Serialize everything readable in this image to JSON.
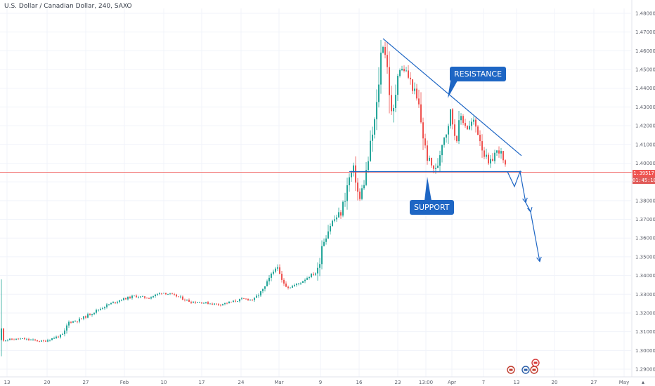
{
  "header": {
    "title": "U.S. Dollar / Canadian Dollar, 240, SAXO"
  },
  "annotations": {
    "resistance": "RESISTANCE",
    "support": "SUPPORT"
  },
  "price_tags": {
    "current": "1.39517",
    "countdown": "01:45:18"
  },
  "icons": [
    "event-flag-icon",
    "event-flag-icon",
    "event-flag-icon",
    "event-flag-icon"
  ],
  "colors": {
    "up": "#26a69a",
    "down": "#ef5350",
    "trendline": "#1e66c4",
    "price_line": "#ef5350",
    "grid": "#f0f3fa",
    "axis_text": "#5d606b"
  },
  "chart_data": {
    "type": "candlestick",
    "title": "U.S. Dollar / Canadian Dollar, 240, SAXO",
    "interval": "240",
    "ylim": [
      1.285,
      1.485
    ],
    "y_ticks": [
      "1.29000",
      "1.30000",
      "1.31000",
      "1.32000",
      "1.33000",
      "1.34000",
      "1.35000",
      "1.36000",
      "1.37000",
      "1.38000",
      "1.39000",
      "1.40000",
      "1.41000",
      "1.42000",
      "1.43000",
      "1.44000",
      "1.45000",
      "1.46000",
      "1.47000",
      "1.48000"
    ],
    "x_ticks": [
      "13",
      "20",
      "27",
      "Feb",
      "10",
      "17",
      "24",
      "Mar",
      "9",
      "16",
      "23",
      "13:00",
      "Apr",
      "7",
      "13",
      "20",
      "27",
      "May"
    ],
    "grid": true,
    "current_price": 1.39517,
    "price_path": [
      [
        0,
        1.3055
      ],
      [
        30,
        1.3062
      ],
      [
        60,
        1.3048
      ],
      [
        90,
        1.3085
      ],
      [
        96,
        1.315
      ],
      [
        110,
        1.316
      ],
      [
        130,
        1.32
      ],
      [
        150,
        1.324
      ],
      [
        170,
        1.327
      ],
      [
        190,
        1.329
      ],
      [
        210,
        1.328
      ],
      [
        230,
        1.331
      ],
      [
        250,
        1.329
      ],
      [
        270,
        1.326
      ],
      [
        290,
        1.3255
      ],
      [
        310,
        1.3245
      ],
      [
        330,
        1.326
      ],
      [
        345,
        1.3275
      ],
      [
        360,
        1.327
      ],
      [
        375,
        1.333
      ],
      [
        385,
        1.34
      ],
      [
        392,
        1.345
      ],
      [
        400,
        1.337
      ],
      [
        410,
        1.3335
      ],
      [
        425,
        1.336
      ],
      [
        440,
        1.34
      ],
      [
        452,
        1.342
      ],
      [
        455,
        1.355
      ],
      [
        470,
        1.368
      ],
      [
        485,
        1.374
      ],
      [
        495,
        1.391
      ],
      [
        503,
        1.398
      ],
      [
        510,
        1.379
      ],
      [
        520,
        1.395
      ],
      [
        528,
        1.413
      ],
      [
        535,
        1.429
      ],
      [
        540,
        1.456
      ],
      [
        545,
        1.465
      ],
      [
        552,
        1.445
      ],
      [
        557,
        1.42
      ],
      [
        565,
        1.45
      ],
      [
        575,
        1.45
      ],
      [
        585,
        1.442
      ],
      [
        595,
        1.43
      ],
      [
        605,
        1.405
      ],
      [
        612,
        1.399
      ],
      [
        620,
        1.396
      ],
      [
        628,
        1.412
      ],
      [
        635,
        1.418
      ],
      [
        640,
        1.428
      ],
      [
        648,
        1.412
      ],
      [
        655,
        1.425
      ],
      [
        665,
        1.418
      ],
      [
        672,
        1.423
      ],
      [
        680,
        1.416
      ],
      [
        688,
        1.405
      ],
      [
        695,
        1.398
      ],
      [
        702,
        1.405
      ],
      [
        710,
        1.407
      ],
      [
        716,
        1.399
      ],
      [
        720,
        1.3955
      ]
    ],
    "resistance": {
      "from": [
        545,
        1.4665
      ],
      "to": [
        742,
        1.404
      ]
    },
    "support": {
      "from": [
        497,
        1.3955
      ],
      "to": [
        742,
        1.3955
      ]
    },
    "projection": [
      [
        722,
        1.3955
      ],
      [
        732,
        1.3875
      ],
      [
        740,
        1.3955
      ],
      [
        748,
        1.379
      ],
      [
        755,
        1.374
      ],
      [
        768,
        1.3475
      ]
    ]
  }
}
